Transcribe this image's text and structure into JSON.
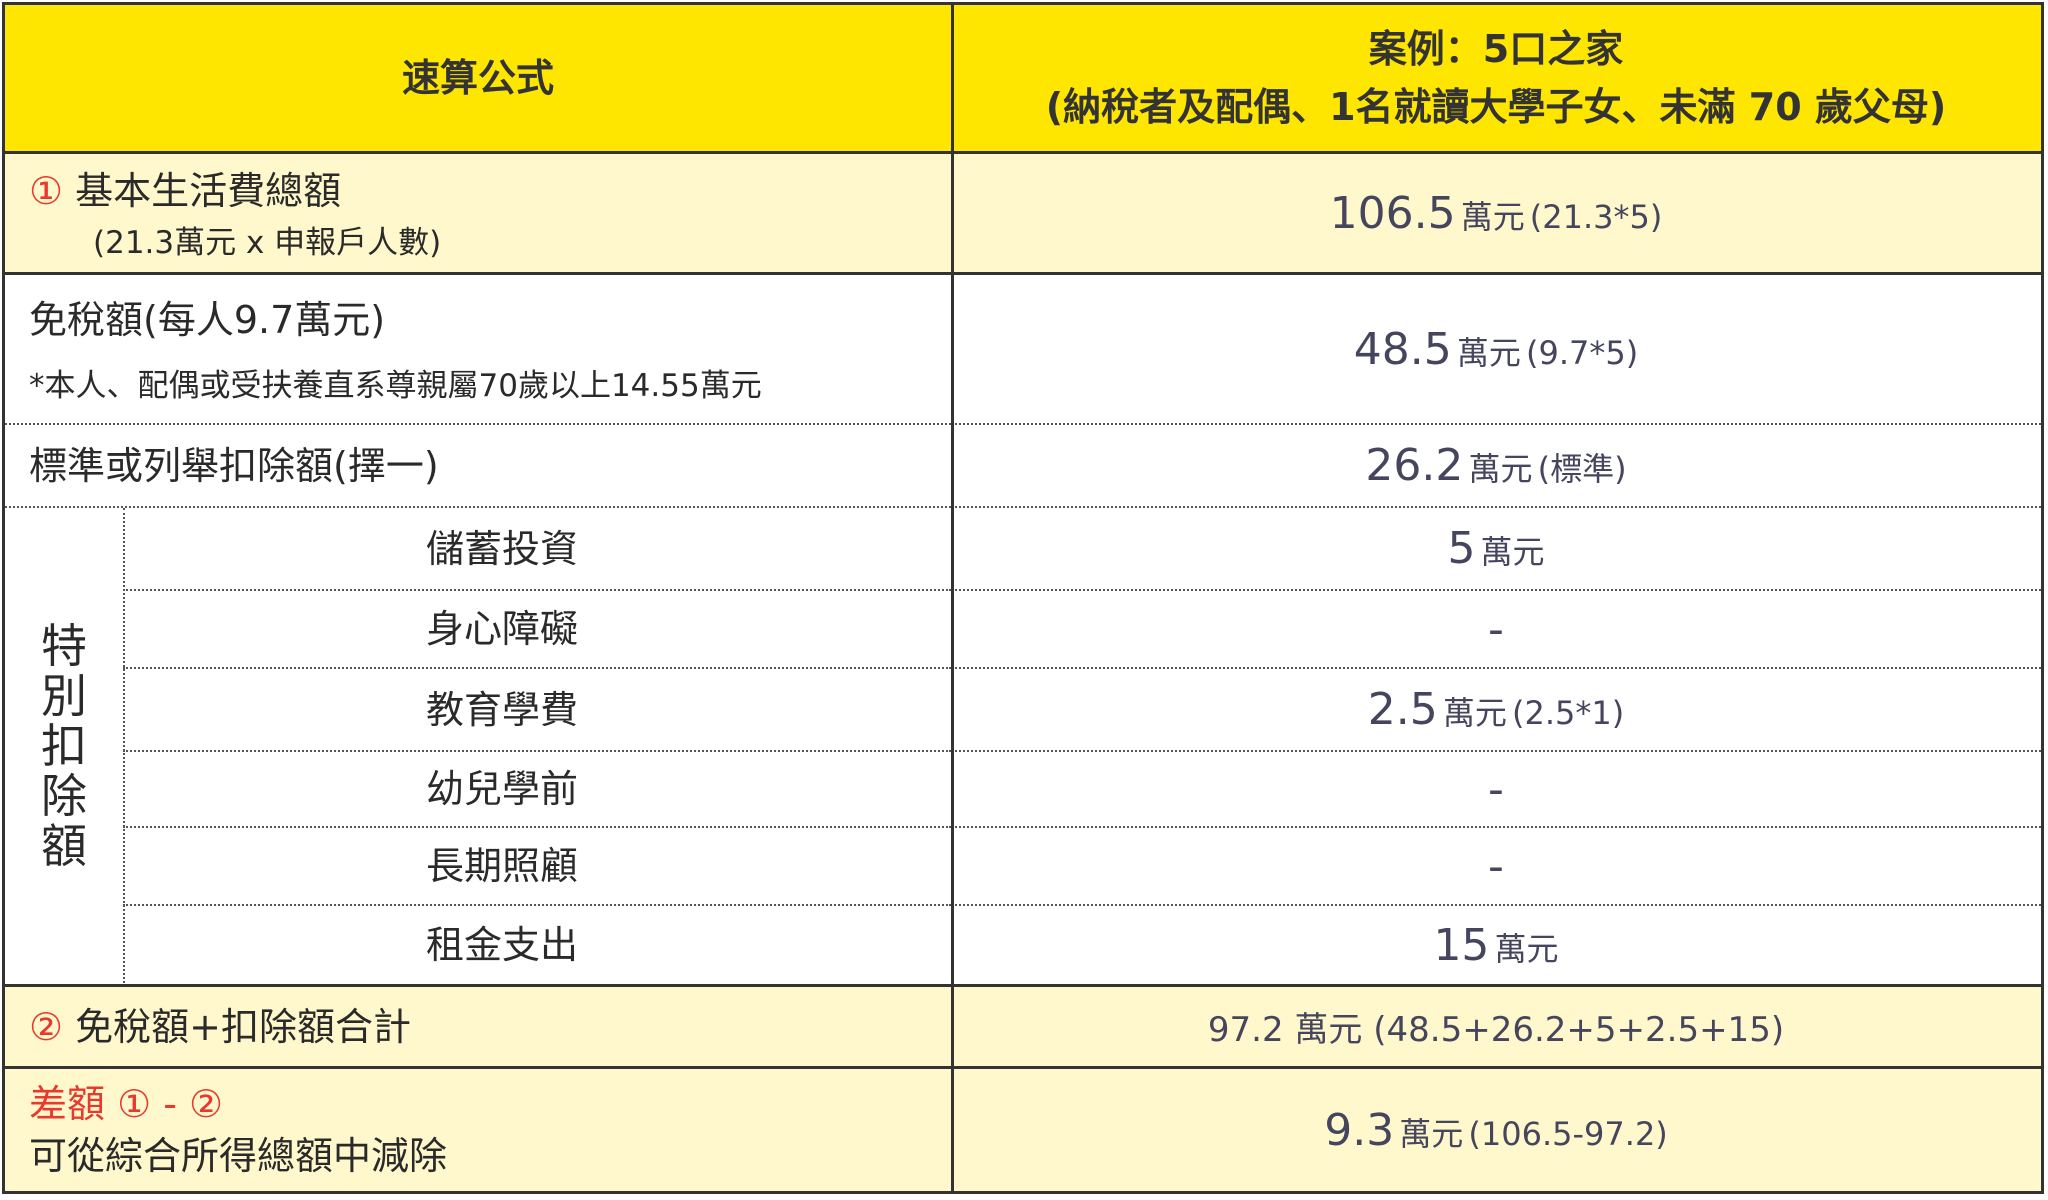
{
  "header": {
    "formula_title": "速算公式",
    "case_title": "案例：5口之家",
    "case_subtitle": "(納稅者及配偶、1名就讀大學子女、未滿 70 歲父母)"
  },
  "rows": {
    "basic": {
      "marker": "①",
      "label": "基本生活費總額",
      "sub": "(21.3萬元 x 申報戶人數)",
      "value": "106.5",
      "unit": "萬元",
      "note": "(21.3*5)"
    },
    "exemption": {
      "label": "免稅額(每人9.7萬元)",
      "sub": "*本人、配偶或受扶養直系尊親屬70歲以上14.55萬元",
      "value": "48.5",
      "unit": "萬元",
      "note": "(9.7*5)"
    },
    "standard": {
      "label": "標準或列舉扣除額(擇一)",
      "value": "26.2",
      "unit": "萬元",
      "note": "(標準)"
    },
    "special": {
      "group_label": [
        "特",
        "別",
        "扣",
        "除",
        "額"
      ],
      "items": [
        {
          "label": "儲蓄投資",
          "value": "5",
          "unit": "萬元",
          "note": ""
        },
        {
          "label": "身心障礙",
          "value": "-",
          "unit": "",
          "note": ""
        },
        {
          "label": "教育學費",
          "value": "2.5",
          "unit": "萬元",
          "note": "(2.5*1)"
        },
        {
          "label": "幼兒學前",
          "value": "-",
          "unit": "",
          "note": ""
        },
        {
          "label": "長期照顧",
          "value": "-",
          "unit": "",
          "note": ""
        },
        {
          "label": "租金支出",
          "value": "15",
          "unit": "萬元",
          "note": ""
        }
      ]
    },
    "total": {
      "marker": "②",
      "label": "免稅額+扣除額合計",
      "value": "97.2",
      "unit": "萬元",
      "note": "(48.5+26.2+5+2.5+15)"
    },
    "diff": {
      "label": "差額 ① - ②",
      "sub": "可從綜合所得總額中減除",
      "value": "9.3",
      "unit": "萬元",
      "note": "(106.5-97.2)"
    }
  },
  "colors": {
    "header": "#FFE600",
    "highlight_row": "#FFF8CC",
    "accent_red": "#E8392F",
    "value_text": "#45455e"
  }
}
